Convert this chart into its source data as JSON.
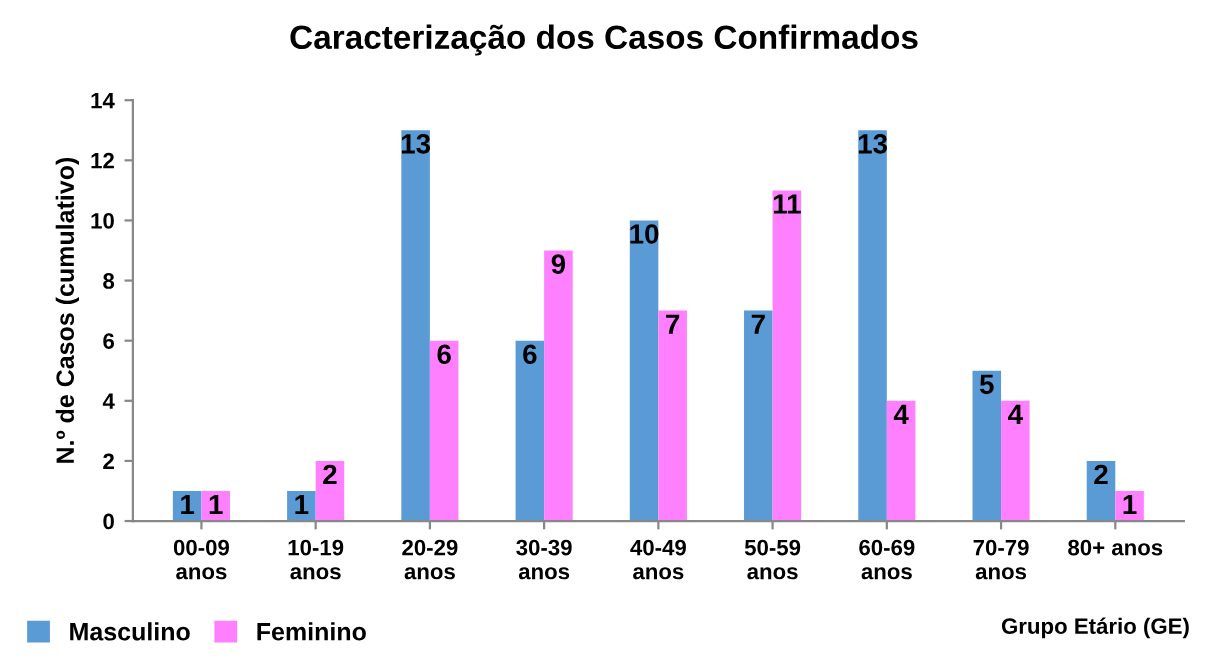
{
  "chart_data": {
    "type": "bar",
    "title": "Caracterização dos Casos Confirmados",
    "xlabel": "Grupo Etário (GE)",
    "ylabel": "N.º de Casos (cumulativo)",
    "categories": [
      "00-09\nanos",
      "10-19\nanos",
      "20-29\nanos",
      "30-39\nanos",
      "40-49\nanos",
      "50-59\nanos",
      "60-69\nanos",
      "70-79\nanos",
      "80+ anos"
    ],
    "series": [
      {
        "name": "Masculino",
        "color": "#5b9bd5",
        "values": [
          1,
          1,
          13,
          6,
          10,
          7,
          13,
          5,
          2
        ]
      },
      {
        "name": "Feminino",
        "color": "#ff80ff",
        "values": [
          1,
          2,
          6,
          9,
          7,
          11,
          4,
          4,
          1
        ]
      }
    ],
    "ylim": [
      0,
      14
    ],
    "yticks": [
      0,
      2,
      4,
      6,
      8,
      10,
      12,
      14
    ],
    "grid": false,
    "legend": "bottom left",
    "data_labels": true
  }
}
